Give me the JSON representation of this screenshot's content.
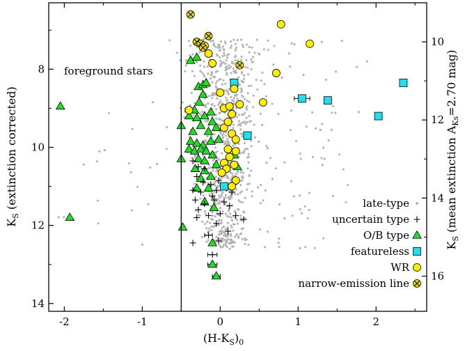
{
  "chart_data": {
    "type": "scatter",
    "xlabel": "(H-K",
    "xlabel_sub": "S",
    "xlabel_tail": ")",
    "xlabel_sub2": "0",
    "ylabel_left": "K",
    "ylabel_left_sub": "S",
    "ylabel_left_tail": " (extinction corrected)",
    "ylabel_right": "K",
    "ylabel_right_sub": "S",
    "ylabel_right_tail": " (mean extinction A",
    "ylabel_right_sub2": "Ks",
    "ylabel_right_tail2": "=2.70 mag)",
    "xlim": [
      -2.2,
      2.65
    ],
    "ylim": [
      14.2,
      6.3
    ],
    "y2lim": [
      16.9,
      9.0
    ],
    "xticks": [
      -2,
      -1,
      0,
      1,
      2
    ],
    "yticks": [
      8,
      10,
      12,
      14
    ],
    "y2ticks": [
      10,
      12,
      14,
      16
    ],
    "vline_x": -0.5,
    "annotation": "foreground stars",
    "legend": [
      {
        "label": "late-type",
        "marker": "dot"
      },
      {
        "label": "uncertain type",
        "marker": "plus"
      },
      {
        "label": "O/B type",
        "marker": "triangle"
      },
      {
        "label": "featureless",
        "marker": "square"
      },
      {
        "label": "WR",
        "marker": "circle"
      },
      {
        "label": "narrow-emission line",
        "marker": "xcircle"
      }
    ],
    "colors": {
      "late_type": "#b5b5b5",
      "ob_type": "#22dd22",
      "featureless": "#22ddee",
      "wr": "#ffee00",
      "narrow_emission": "#e8d800",
      "outline": "#000000"
    },
    "series": [
      {
        "name": "O/B type",
        "points": [
          [
            -2.05,
            8.95
          ],
          [
            -1.93,
            11.8
          ],
          [
            -0.5,
            9.45
          ],
          [
            -0.5,
            10.3
          ],
          [
            -0.48,
            12.05
          ],
          [
            -0.38,
            7.78
          ],
          [
            -0.3,
            7.7
          ],
          [
            -0.28,
            8.45
          ],
          [
            -0.22,
            8.4
          ],
          [
            -0.18,
            8.35
          ],
          [
            -0.22,
            8.65
          ],
          [
            -0.27,
            8.85
          ],
          [
            -0.33,
            9.05
          ],
          [
            -0.4,
            9.2
          ],
          [
            -0.3,
            9.25
          ],
          [
            -0.2,
            9.2
          ],
          [
            -0.12,
            9.1
          ],
          [
            -0.1,
            9.35
          ],
          [
            -0.25,
            9.45
          ],
          [
            -0.35,
            9.6
          ],
          [
            -0.15,
            9.6
          ],
          [
            -0.05,
            9.5
          ],
          [
            -0.38,
            9.85
          ],
          [
            -0.3,
            9.9
          ],
          [
            -0.22,
            9.95
          ],
          [
            -0.12,
            9.85
          ],
          [
            -0.02,
            9.8
          ],
          [
            -0.4,
            10.05
          ],
          [
            -0.33,
            10.1
          ],
          [
            -0.25,
            10.05
          ],
          [
            -0.18,
            10.1
          ],
          [
            -0.28,
            10.3
          ],
          [
            -0.2,
            10.35
          ],
          [
            -0.1,
            10.2
          ],
          [
            -0.05,
            10.45
          ],
          [
            -0.32,
            10.55
          ],
          [
            -0.2,
            10.6
          ],
          [
            -0.25,
            10.8
          ],
          [
            -0.12,
            10.75
          ],
          [
            -0.3,
            11.05
          ],
          [
            -0.15,
            11.05
          ],
          [
            -0.2,
            11.4
          ],
          [
            -0.08,
            11.55
          ],
          [
            -0.1,
            12.45
          ],
          [
            -0.1,
            13.0
          ],
          [
            -0.05,
            13.3
          ],
          [
            0.18,
            10.2
          ],
          [
            0.22,
            10.5
          ]
        ]
      },
      {
        "name": "uncertain type",
        "points": [
          [
            -0.35,
            10.35
          ],
          [
            -0.28,
            10.5
          ],
          [
            -0.2,
            10.55
          ],
          [
            -0.3,
            10.75
          ],
          [
            -0.22,
            10.9
          ],
          [
            -0.12,
            10.95
          ],
          [
            -0.02,
            10.85
          ],
          [
            -0.35,
            11.1
          ],
          [
            -0.25,
            11.15
          ],
          [
            -0.1,
            11.25
          ],
          [
            -0.05,
            11.1
          ],
          [
            0.08,
            11.05
          ],
          [
            0.15,
            11.15
          ],
          [
            -0.32,
            11.35
          ],
          [
            -0.2,
            11.45
          ],
          [
            -0.08,
            11.35
          ],
          [
            0.05,
            11.4
          ],
          [
            0.12,
            11.5
          ],
          [
            -0.28,
            11.6
          ],
          [
            -0.15,
            11.75
          ],
          [
            0.0,
            11.7
          ],
          [
            0.2,
            11.75
          ],
          [
            -0.3,
            11.8
          ],
          [
            0.3,
            11.85
          ],
          [
            -0.05,
            11.95
          ],
          [
            0.1,
            12.15
          ],
          [
            -0.15,
            12.25
          ],
          [
            -0.02,
            12.4
          ],
          [
            -0.35,
            12.45
          ],
          [
            -0.1,
            12.75
          ]
        ]
      },
      {
        "name": "featureless",
        "points": [
          [
            0.18,
            8.35
          ],
          [
            0.35,
            9.7
          ],
          [
            0.05,
            11.0
          ],
          [
            1.05,
            8.75
          ],
          [
            1.38,
            8.8
          ],
          [
            2.03,
            9.2
          ],
          [
            2.35,
            8.35
          ]
        ]
      },
      {
        "name": "WR",
        "points": [
          [
            -0.4,
            9.05
          ],
          [
            -0.2,
            7.4
          ],
          [
            -0.15,
            7.6
          ],
          [
            -0.1,
            7.85
          ],
          [
            0.0,
            8.6
          ],
          [
            0.05,
            9.0
          ],
          [
            0.12,
            8.95
          ],
          [
            0.15,
            9.15
          ],
          [
            0.18,
            8.5
          ],
          [
            0.25,
            8.9
          ],
          [
            0.05,
            9.5
          ],
          [
            0.1,
            9.35
          ],
          [
            0.15,
            9.65
          ],
          [
            0.2,
            9.8
          ],
          [
            0.1,
            10.05
          ],
          [
            0.2,
            10.1
          ],
          [
            0.12,
            10.25
          ],
          [
            0.05,
            10.4
          ],
          [
            0.18,
            10.45
          ],
          [
            0.08,
            10.55
          ],
          [
            0.02,
            10.65
          ],
          [
            0.2,
            10.85
          ],
          [
            0.15,
            11.0
          ],
          [
            0.55,
            8.85
          ],
          [
            0.72,
            8.1
          ],
          [
            0.78,
            6.85
          ],
          [
            1.15,
            7.35
          ]
        ]
      },
      {
        "name": "narrow-emission line",
        "points": [
          [
            -0.38,
            6.6
          ],
          [
            -0.15,
            7.15
          ],
          [
            -0.3,
            7.3
          ],
          [
            -0.25,
            7.35
          ],
          [
            -0.22,
            7.45
          ],
          [
            0.25,
            7.9
          ]
        ]
      }
    ],
    "error_bars": [
      {
        "series": "featureless",
        "x": 1.05,
        "y": 8.75,
        "xerr": 0.1
      },
      {
        "series": "uncertain type",
        "x": -0.15,
        "y": 12.25,
        "xerr": 0.05
      },
      {
        "series": "uncertain type",
        "x": -0.1,
        "y": 12.75,
        "xerr": 0.06
      },
      {
        "series": "O/B type",
        "x": -0.1,
        "y": 13.0,
        "xerr": 0.06
      },
      {
        "series": "O/B type",
        "x": -0.05,
        "y": 13.3,
        "xerr": 0.05
      },
      {
        "series": "WR",
        "x": -0.4,
        "y": 9.05,
        "xerr": 0.05
      }
    ]
  }
}
